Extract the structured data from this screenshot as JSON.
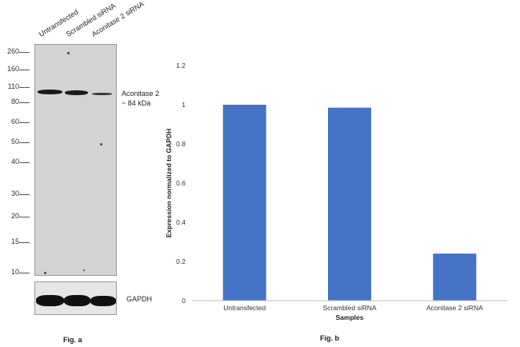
{
  "blot": {
    "lanes": [
      "Untransfected",
      "Scrambled siRNA",
      "Aconitase 2 siRNA"
    ],
    "markers": [
      "260",
      "160",
      "110",
      "80",
      "60",
      "50",
      "40",
      "30",
      "20",
      "15",
      "10"
    ],
    "target_label": "Aconitase 2",
    "target_size": "~ 84 kDa",
    "loading_control": "GAPDH",
    "fig_label": "Fig. a"
  },
  "chart_data": {
    "type": "bar",
    "categories": [
      "Untransfected",
      "Scrambled siRNA",
      "Aconitase 2 siRNA"
    ],
    "values": [
      1.0,
      0.985,
      0.24
    ],
    "xlabel": "Samples",
    "ylabel": "Expression normalized to GAPDH",
    "ylim": [
      0,
      1.2
    ],
    "yticks": [
      "0",
      "0.2",
      "0.4",
      "0.6",
      "0.8",
      "1",
      "1.2"
    ],
    "bar_color": "#4472c4",
    "grid": false,
    "fig_label": "Fig. b"
  }
}
